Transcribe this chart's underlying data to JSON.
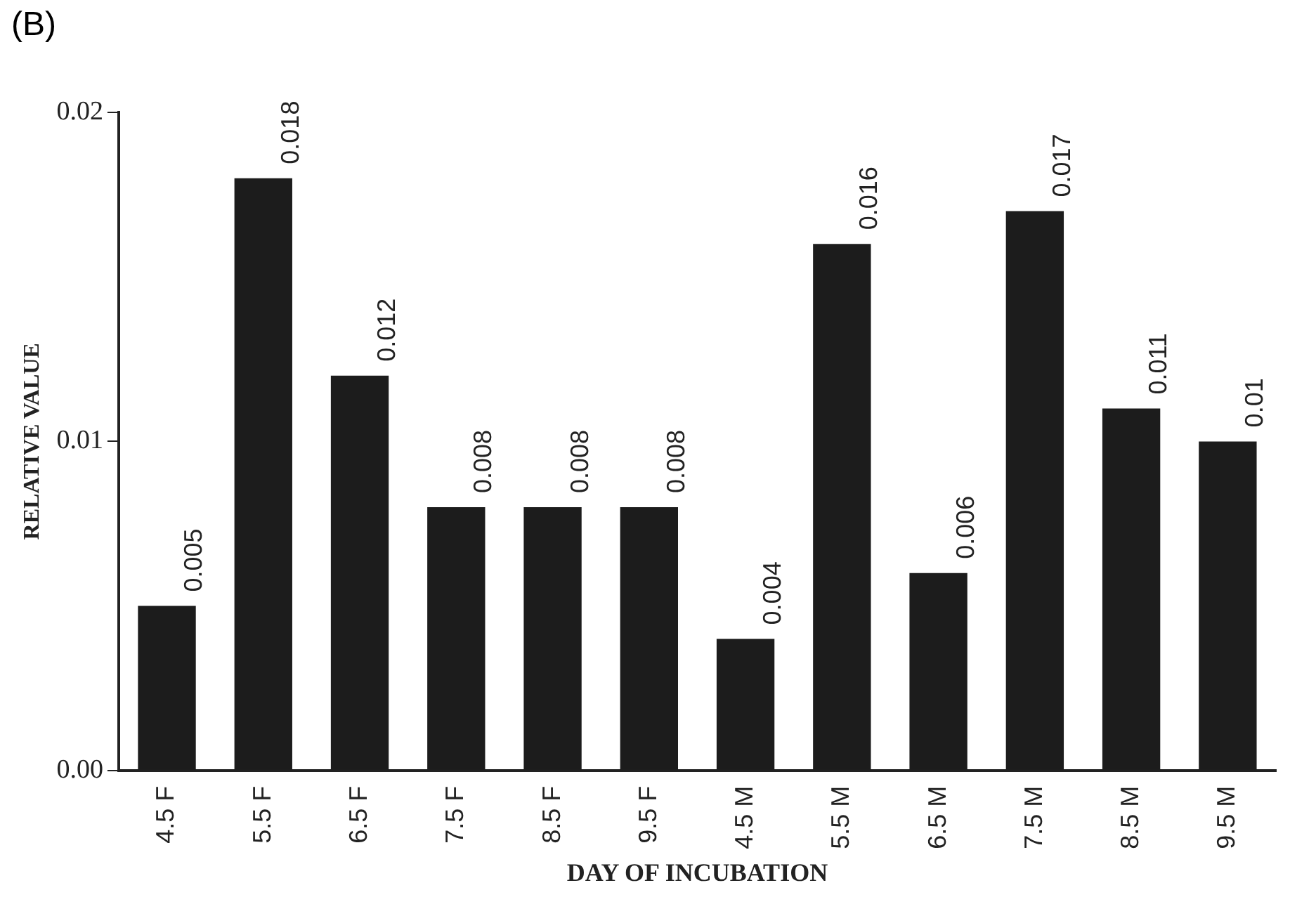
{
  "chart_data": {
    "type": "bar",
    "title": "(B)",
    "xlabel": "DAY OF INCUBATION",
    "ylabel": "RELATIVE VALUE",
    "categories": [
      "4.5 F",
      "5.5 F",
      "6.5 F",
      "7.5 F",
      "8.5 F",
      "9.5 F",
      "4.5 M",
      "5.5 M",
      "6.5 M",
      "7.5 M",
      "8.5 M",
      "9.5 M"
    ],
    "values": [
      0.005,
      0.018,
      0.012,
      0.008,
      0.008,
      0.008,
      0.004,
      0.016,
      0.006,
      0.017,
      0.011,
      0.01
    ],
    "color": "#1c1c1c",
    "ylim": [
      0,
      0.02
    ],
    "yticks": [
      {
        "value": 0,
        "label": "0.00"
      },
      0.01,
      0.02
    ],
    "grid": false,
    "legend": false,
    "data_labels": true
  }
}
